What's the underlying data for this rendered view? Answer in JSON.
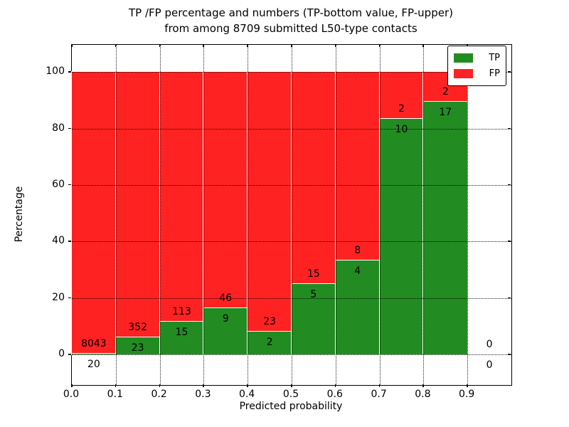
{
  "title": {
    "line1": "TP /FP percentage and numbers (TP-bottom value, FP-upper)",
    "line2": "from among 8709 submitted L50-type contacts"
  },
  "axes": {
    "xlabel": "Predicted probability",
    "ylabel": "Percentage"
  },
  "legend": {
    "items": [
      {
        "label": "TP",
        "color": "#228B22"
      },
      {
        "label": "FP",
        "color": "#FF2222"
      }
    ]
  },
  "chart_data": {
    "type": "bar",
    "stacked": true,
    "units": "percent of bin total (TP+FP), bars normalized to 100%",
    "title": "TP /FP percentage and numbers (TP-bottom value, FP-upper) from among 8709 submitted L50-type contacts",
    "total_submitted_contacts": 8709,
    "xlabel": "Predicted probability",
    "ylabel": "Percentage",
    "xlim": [
      0.0,
      1.0
    ],
    "ylim": [
      -10.8,
      109.6
    ],
    "xticks": [
      "0.0",
      "0.1",
      "0.2",
      "0.3",
      "0.4",
      "0.5",
      "0.6",
      "0.7",
      "0.8",
      "0.9"
    ],
    "yticks": [
      0,
      20,
      40,
      60,
      80,
      100
    ],
    "grid": "dotted black, drawn above bars",
    "legend_position": "upper right",
    "series": [
      {
        "name": "TP",
        "color": "#228B22",
        "stack_position": "bottom"
      },
      {
        "name": "FP",
        "color": "#FF2222",
        "stack_position": "top"
      }
    ],
    "bins": [
      {
        "x0": 0.0,
        "x1": 0.1,
        "tp": 20,
        "fp": 8043
      },
      {
        "x0": 0.1,
        "x1": 0.2,
        "tp": 23,
        "fp": 352
      },
      {
        "x0": 0.2,
        "x1": 0.3,
        "tp": 15,
        "fp": 113
      },
      {
        "x0": 0.3,
        "x1": 0.4,
        "tp": 9,
        "fp": 46
      },
      {
        "x0": 0.4,
        "x1": 0.5,
        "tp": 2,
        "fp": 23
      },
      {
        "x0": 0.5,
        "x1": 0.6,
        "tp": 5,
        "fp": 15
      },
      {
        "x0": 0.6,
        "x1": 0.7,
        "tp": 4,
        "fp": 8
      },
      {
        "x0": 0.7,
        "x1": 0.8,
        "tp": 10,
        "fp": 2
      },
      {
        "x0": 0.8,
        "x1": 0.9,
        "tp": 17,
        "fp": 2
      },
      {
        "x0": 0.9,
        "x1": 1.0,
        "tp": 0,
        "fp": 0
      }
    ]
  }
}
